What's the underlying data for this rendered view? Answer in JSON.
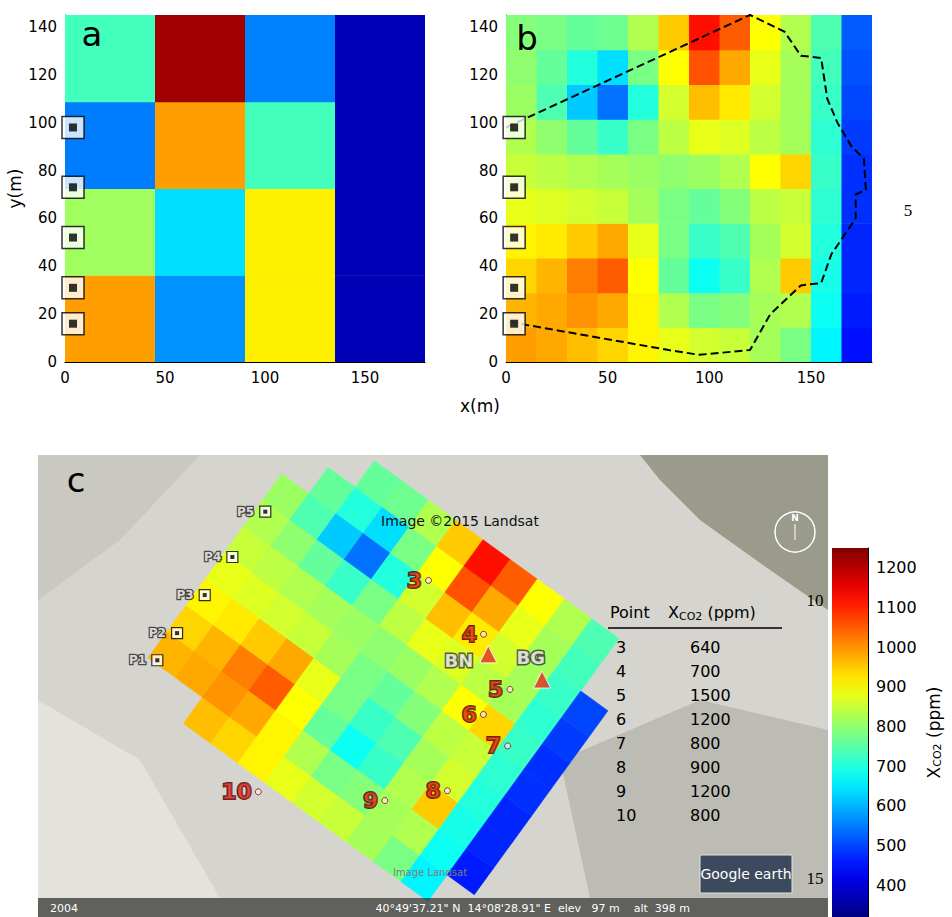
{
  "chart_data": [
    {
      "type": "heatmap",
      "panel": "a",
      "x_edges": [
        0,
        45,
        90,
        135,
        180
      ],
      "y_edges": [
        0,
        36.25,
        72.5,
        108.75,
        145
      ],
      "cells": [
        [
          990,
          570,
          915,
          370
        ],
        [
          815,
          640,
          915,
          370
        ],
        [
          550,
          990,
          730,
          370
        ],
        [
          730,
          1220,
          555,
          370
        ]
      ],
      "xlim": [
        0,
        180
      ],
      "ylim": [
        0,
        145
      ],
      "xticks": [
        0,
        50,
        100,
        150
      ],
      "yticks": [
        0,
        20,
        40,
        60,
        80,
        100,
        120,
        140
      ],
      "ylabel": "y(m)",
      "markers": {
        "x": [
          4,
          4,
          4,
          4,
          4
        ],
        "y": [
          16,
          31,
          52,
          73,
          98
        ]
      },
      "marker": "square"
    },
    {
      "type": "heatmap",
      "panel": "b",
      "x_edges": [
        0,
        15,
        30,
        45,
        60,
        75,
        90,
        105,
        120,
        135,
        150,
        165,
        180
      ],
      "y_edges": [
        0,
        14.5,
        29,
        43.5,
        58,
        72.5,
        87,
        101.5,
        116,
        130.5,
        145
      ],
      "cells": [
        [
          990,
          980,
          960,
          940,
          910,
          880,
          860,
          850,
          820,
          780,
          660,
          450
        ],
        [
          970,
          980,
          1000,
          980,
          910,
          830,
          780,
          790,
          820,
          830,
          680,
          460
        ],
        [
          940,
          970,
          1020,
          1050,
          900,
          760,
          680,
          720,
          830,
          950,
          690,
          470
        ],
        [
          910,
          920,
          950,
          980,
          880,
          780,
          720,
          740,
          820,
          860,
          700,
          470
        ],
        [
          880,
          870,
          860,
          850,
          820,
          780,
          760,
          790,
          840,
          850,
          710,
          480
        ],
        [
          850,
          840,
          830,
          820,
          810,
          800,
          810,
          830,
          900,
          940,
          720,
          480
        ],
        [
          830,
          800,
          760,
          720,
          780,
          840,
          880,
          870,
          840,
          820,
          710,
          490
        ],
        [
          810,
          740,
          620,
          540,
          700,
          860,
          960,
          920,
          860,
          820,
          720,
          500
        ],
        [
          800,
          760,
          700,
          640,
          780,
          900,
          1060,
          980,
          880,
          820,
          730,
          510
        ],
        [
          790,
          780,
          760,
          770,
          830,
          950,
          1120,
          1050,
          900,
          830,
          740,
          520
        ]
      ],
      "xlim": [
        0,
        180
      ],
      "ylim": [
        0,
        145
      ],
      "xticks": [
        0,
        50,
        100,
        150
      ],
      "yticks": [
        0,
        20,
        40,
        60,
        80,
        100,
        120,
        140
      ],
      "xlabel": "x(m)",
      "outline": {
        "x": [
          0,
          120,
          137,
          145,
          155,
          158,
          163,
          170,
          176,
          177,
          172,
          172,
          168,
          160,
          155,
          145,
          130,
          120,
          95,
          80,
          0
        ],
        "y": [
          98,
          145,
          138,
          128,
          127,
          110,
          100,
          90,
          85,
          72,
          70,
          60,
          55,
          45,
          33,
          32,
          20,
          5,
          3,
          5,
          17
        ]
      },
      "line_style": "dashed",
      "markers": {
        "x": [
          4,
          4,
          4,
          4,
          4
        ],
        "y": [
          16,
          31,
          52,
          73,
          98
        ]
      },
      "marker": "square"
    },
    {
      "type": "map",
      "panel": "c",
      "x_edges": [
        0,
        15,
        30,
        45,
        60,
        75,
        90,
        105,
        120,
        135,
        150,
        165,
        180
      ],
      "y_edges": [
        0,
        14.5,
        29,
        43.5,
        58,
        72.5,
        87,
        101.5,
        116,
        130.5,
        145
      ],
      "cells": [
        [
          null,
          null,
          960,
          940,
          910,
          880,
          860,
          850,
          820,
          780,
          660,
          null
        ],
        [
          970,
          980,
          1000,
          980,
          910,
          830,
          780,
          790,
          820,
          830,
          680,
          460
        ],
        [
          940,
          970,
          1020,
          1050,
          900,
          760,
          680,
          720,
          830,
          950,
          690,
          470
        ],
        [
          910,
          920,
          950,
          980,
          880,
          780,
          720,
          740,
          820,
          860,
          700,
          470
        ],
        [
          880,
          870,
          860,
          850,
          820,
          780,
          760,
          790,
          840,
          850,
          710,
          480
        ],
        [
          850,
          840,
          830,
          820,
          810,
          800,
          810,
          830,
          900,
          940,
          720,
          480
        ],
        [
          830,
          800,
          760,
          720,
          780,
          840,
          880,
          870,
          840,
          820,
          710,
          490
        ],
        [
          810,
          740,
          620,
          540,
          700,
          860,
          960,
          920,
          860,
          820,
          720,
          500
        ],
        [
          null,
          760,
          700,
          640,
          780,
          900,
          1060,
          980,
          880,
          820,
          730,
          null
        ],
        [
          null,
          null,
          760,
          770,
          830,
          950,
          1120,
          1050,
          900,
          830,
          740,
          null
        ]
      ],
      "wells": {
        "labels": [
          "P1",
          "P2",
          "P3",
          "P4",
          "P5"
        ],
        "x": [
          4,
          4,
          4,
          4,
          4
        ],
        "y": [
          16,
          31,
          52,
          73,
          98
        ],
        "marker": "square"
      },
      "points": {
        "labels": [
          "3",
          "4",
          "5",
          "6",
          "7",
          "8",
          "9",
          "10"
        ],
        "x": [
          81,
          115,
          139,
          136,
          153,
          143,
          123,
          75
        ],
        "y": [
          116,
          111,
          98,
          82,
          77,
          45,
          25,
          -5
        ],
        "values": [
          640,
          700,
          1500,
          1200,
          800,
          900,
          1200,
          800
        ],
        "marker": "circle"
      },
      "stations": {
        "labels": [
          "BN",
          "BG"
        ],
        "x": [
          122,
          148
        ],
        "y": [
          105,
          110
        ],
        "marker": "triangle"
      },
      "table": {
        "header": [
          "Point",
          {
            "main": "X",
            "sub": "CO2",
            "rest": " (ppm)"
          }
        ]
      },
      "attribution": "Image ©2015 Landsat",
      "watermark": "Image Landsat",
      "logo": "Google earth",
      "date": "2004",
      "status_bar": "40°49'37.21\" N  14°08'28.91\" E  elev   97 m    alt  398 m",
      "compass": "N"
    },
    {
      "type": "colorbar",
      "ylim": [
        320,
        1250
      ],
      "yticks": [
        400,
        500,
        600,
        700,
        800,
        900,
        1000,
        1100,
        1200
      ],
      "label": {
        "main": "X",
        "sub": "CO2",
        "rest": " (ppm)"
      }
    }
  ],
  "line_numbers": [
    5,
    10,
    15
  ]
}
